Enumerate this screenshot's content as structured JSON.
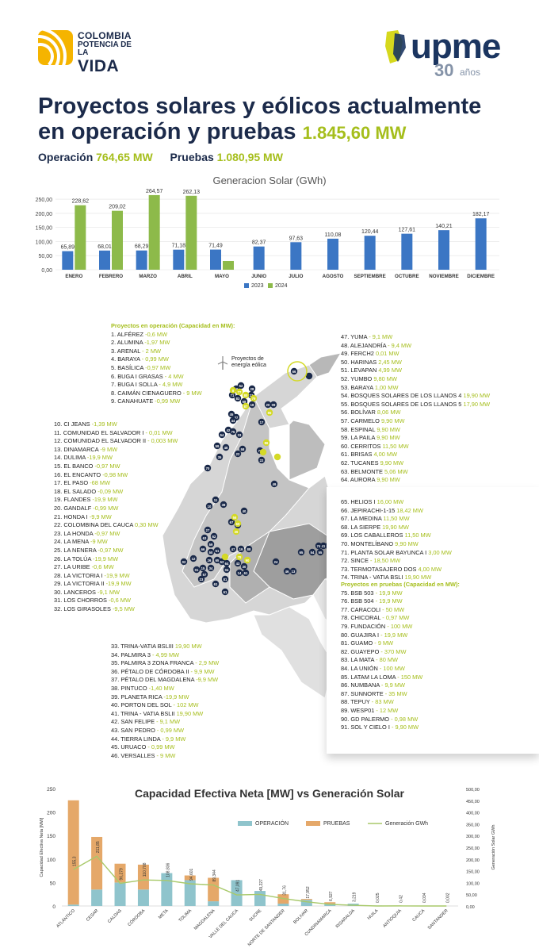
{
  "header": {
    "left_logo": {
      "line1": "COLOMBIA",
      "line2": "POTENCIA DE LA",
      "line3": "VIDA"
    },
    "right_logo": {
      "name": "upme",
      "years": "30",
      "years_word": "años"
    }
  },
  "title": {
    "line1": "Proyectos solares y eólicos actualmente",
    "line2": "en operación y pruebas",
    "total": "1.845,60 MW"
  },
  "summary": {
    "operacion_label": "Operación",
    "operacion_value": "764,65 MW",
    "pruebas_label": "Pruebas",
    "pruebas_value": "1.080,95 MW"
  },
  "colors": {
    "accent_green": "#a5be1b",
    "navy": "#1b2a4a",
    "bar_blue": "#3b76c4",
    "bar_green": "#8dba4a",
    "operacion": "#8fc4cc",
    "pruebas": "#e5a869",
    "line_green": "#a8c96a"
  },
  "chart_data": [
    {
      "type": "bar",
      "title": "Generacion Solar (GWh)",
      "categories": [
        "ENERO",
        "FEBRERO",
        "MARZO",
        "ABRIL",
        "MAYO",
        "JUNIO",
        "JULIO",
        "AGOSTO",
        "SEPTIEMBRE",
        "OCTUBRE",
        "NOVIEMBRE",
        "DICIEMBRE"
      ],
      "y_ticks": [
        "0,00",
        "50,00",
        "100,00",
        "150,00",
        "200,00",
        "250,00"
      ],
      "ylim": [
        0,
        270
      ],
      "series": [
        {
          "name": "2023",
          "values": [
            65.89,
            68.01,
            68.29,
            71.18,
            71.49,
            82.37,
            97.63,
            110.08,
            120.44,
            127.61,
            140.21,
            182.17
          ],
          "labels": [
            "65,89",
            "68,01",
            "68,29",
            "71,18",
            "71,49",
            "82,37",
            "97,63",
            "110,08",
            "120,44",
            "127,61",
            "140,21",
            "182,17"
          ]
        },
        {
          "name": "2024",
          "values": [
            228.62,
            209.02,
            264.57,
            262.13,
            31,
            null,
            null,
            null,
            null,
            null,
            null,
            null
          ],
          "labels": [
            "228,62",
            "209,02",
            "264,57",
            "262,13",
            "",
            "",
            "",
            "",
            "",
            "",
            "",
            ""
          ]
        }
      ],
      "legend": "bottom"
    },
    {
      "type": "bar",
      "title": "Capacidad Efectiva Neta [MW] vs Generación Solar",
      "ylabel": "Capacidad Efectiva Neta [MW]",
      "y2label": "Generación Solar GWh",
      "categories": [
        "ATLÁNTICO",
        "CESAR",
        "CALDAS",
        "CÓRDOBA",
        "META",
        "TOLIMA",
        "MAGDALENA",
        "VALLE DEL CAUCA",
        "SUCRE",
        "NORTE DE SANTANDER",
        "BOLIVAR",
        "CUNDINAMARCA",
        "RISARALDA",
        "HUILA",
        "ANTIOQUIA",
        "CAUCA",
        "SANTANDER"
      ],
      "y_ticks": [
        "0",
        "50",
        "100",
        "150",
        "200",
        "250"
      ],
      "y2_ticks": [
        "0,00",
        "50,00",
        "100,00",
        "150,00",
        "200,00",
        "250,00",
        "300,00",
        "350,00",
        "400,00",
        "450,00",
        "500,00"
      ],
      "ylim": [
        0,
        250
      ],
      "y2lim": [
        0,
        500
      ],
      "series": [
        {
          "name": "OPERACIÓN",
          "values": [
            3,
            35,
            50,
            35,
            70,
            55,
            10,
            55,
            32,
            5,
            13,
            5,
            5,
            1,
            0,
            0,
            0
          ]
        },
        {
          "name": "PRUEBAS",
          "values": [
            222,
            112,
            40,
            53,
            0,
            10,
            50,
            0,
            0,
            20,
            2,
            3,
            0,
            0,
            0,
            0,
            0
          ]
        },
        {
          "name": "Generación GWh",
          "values": [
            155.3,
            211.85,
            96.279,
            110.708,
            108.836,
            94.601,
            89.344,
            47.091,
            49.227,
            31.76,
            17.952,
            6.927,
            3.219,
            0.025,
            0.42,
            0.034,
            0.002
          ],
          "labels": [
            "155,3",
            "211,85",
            "96,279",
            "110,708",
            "108,836",
            "94,601",
            "89,344",
            "47,091",
            "49,227",
            "31,76",
            "17,952",
            "6,927",
            "3,219",
            "0,025",
            "0,42",
            "0,034",
            "0,002"
          ]
        }
      ],
      "legend": "top-right"
    }
  ],
  "map": {
    "wind_label": "Proyectos de energía eólica"
  },
  "lists": {
    "operacion_header": "Proyectos en operación (Capacidad en MW):",
    "pruebas_header": "Proyectos en pruebas (Capacidad en MW):",
    "col1": [
      [
        "1. ALFÉREZ",
        "-0,6 MW"
      ],
      [
        "2. ALUMINA",
        "-1,97 MW"
      ],
      [
        "3. ARENAL",
        "- 2 MW"
      ],
      [
        "4. BARAYA",
        "- 0,99 MW"
      ],
      [
        "5. BASÍLICA",
        "-0,97 MW"
      ],
      [
        "6. BUGA I GRASAS",
        "- 4 MW"
      ],
      [
        "7. BUGA I SOLLA",
        "- 4,9 MW"
      ],
      [
        "8. CAIMÁN CIENAGUERO",
        "- 9 MW"
      ],
      [
        "9. CANAHUATE",
        "-0,99 MW"
      ]
    ],
    "col2": [
      [
        "10. CI JEANS",
        "-1,39 MW"
      ],
      [
        "11. COMUNIDAD EL SALVADOR I",
        "- 0,01 MW"
      ],
      [
        "12. COMUNIDAD EL SALVADOR II",
        "- 0,003 MW"
      ],
      [
        "13. DINAMARCA",
        "-9 MW"
      ],
      [
        "14. DULIMA",
        "-19,9 MW"
      ],
      [
        "15. EL BANCO",
        "-0,97 MW"
      ],
      [
        "16. EL ENCANTO",
        "-0,98 MW"
      ],
      [
        "17. EL PASO",
        "-68 MW"
      ],
      [
        "18. EL SALADO",
        "-0,09 MW"
      ],
      [
        "19. FLANDES",
        "-19,9 MW"
      ],
      [
        "20. GANDALF",
        "-0,99 MW"
      ],
      [
        "21. HONDA I",
        "-9,9 MW"
      ],
      [
        "22. COLOMBINA DEL CAUCA",
        "0,30 MW"
      ],
      [
        "23. LA HONDA",
        "-0,97 MW"
      ],
      [
        "24. LA MENA",
        "-9 MW"
      ],
      [
        "25. LA NENERA",
        "-0,97 MW"
      ],
      [
        "26. LA TOLÚA",
        "-19,9 MW"
      ],
      [
        "27. LA URIBE",
        "-0,6 MW"
      ],
      [
        "28. LA VICTORIA I",
        "-19,9 MW"
      ],
      [
        "29. LA VICTORIA II",
        "-19,9 MW"
      ],
      [
        "30. LANCEROS",
        "-9,1 MW"
      ],
      [
        "31. LOS CHORROS",
        "-0,6 MW"
      ],
      [
        "32. LOS GIRASOLES",
        "-9,5 MW"
      ]
    ],
    "col3": [
      [
        "33. TRINA-VATIA BSLIII",
        "19,90 MW"
      ],
      [
        "34. PALMIRA 3",
        "- 4,99 MW"
      ],
      [
        "35. PALMIRA 3 ZONA FRANCA",
        "- 2,9 MW"
      ],
      [
        "36. PÉTALO DE CÓRDOBA II",
        "- 9,9 MW"
      ],
      [
        "37. PÉTALO DEL MAGDALENA",
        "-9,9 MW"
      ],
      [
        "38. PINTUCO",
        "-1,40 MW"
      ],
      [
        "39. PLANETA RICA",
        "-19,9 MW"
      ],
      [
        "40. PORTON DEL SOL",
        "- 102 MW"
      ],
      [
        "41. TRINA - VATIA BSLII",
        "19,90 MW"
      ],
      [
        "42. SAN FELIPE",
        "- 9,1 MW"
      ],
      [
        "43. SAN PEDRO",
        "- 0,99 MW"
      ],
      [
        "44. TIERRA LINDA",
        "- 9,9 MW"
      ],
      [
        "45. URUACO",
        "- 0,99 MW"
      ],
      [
        "46. VERSALLES",
        "- 9 MW"
      ]
    ],
    "col4": [
      [
        "47. YUMA",
        "- 9,1 MW"
      ],
      [
        "48. ALEJANDRÍA",
        "- 9,4 MW"
      ],
      [
        "49. FERCH2",
        "0,01 MW"
      ],
      [
        "50. HARINAS",
        "2,45 MW"
      ],
      [
        "51. LEVAPAN",
        "4,99 MW"
      ],
      [
        "52. YUMBO",
        "9,80 MW"
      ],
      [
        "53. BARAYA",
        "1,00 MW"
      ],
      [
        "54. BOSQUES SOLARES DE LOS LLANOS 4",
        "19,90 MW"
      ],
      [
        "55. BOSQUES SOLARES DE LOS LLANOS 5",
        "17,90 MW"
      ],
      [
        "56. BOLÍVAR",
        "8,06 MW"
      ],
      [
        "57. CARMELO",
        "9,90 MW"
      ],
      [
        "58. ESPINAL",
        "9,90 MW"
      ],
      [
        "59. LA PAILA",
        "9,90 MW"
      ],
      [
        "60. CERRITOS",
        "11,50 MW"
      ],
      [
        "61. BRISAS",
        "4,00 MW"
      ],
      [
        "62. TUCANES",
        "9,90 MW"
      ],
      [
        "63. BELMONTE",
        "5,06 MW"
      ],
      [
        "64. AURORA",
        "9,90 MW"
      ],
      [
        "65. HELIOS I",
        "16,00 MW"
      ],
      [
        "66. JEPIRACHI-1-15",
        "18,42 MW"
      ],
      [
        "67. LA MEDINA",
        "11,50 MW"
      ],
      [
        "68. LA SIERPE",
        "19,90 MW"
      ],
      [
        "69. LOS CABALLEROS",
        "11,50 MW"
      ],
      [
        "70. MONTELÍBANO",
        "9,90 MW"
      ],
      [
        "71. PLANTA SOLAR BAYUNCA I",
        "3,00 MW"
      ],
      [
        "72. SINCE",
        "- 18,50 MW"
      ],
      [
        "73. TERMOTASAJERO DOS",
        "4,00 MW"
      ],
      [
        "74. TRINA - VATIA BSLI",
        "19,90 MW"
      ]
    ],
    "col5": [
      [
        "75. BSB 503",
        "- 19,9 MW"
      ],
      [
        "76. BSB 504",
        "- 19,9 MW"
      ],
      [
        "77. CARACOLI",
        "- 50 MW"
      ],
      [
        "78. CHICORAL",
        "- 0,97 MW"
      ],
      [
        "79. FUNDACIÓN",
        "- 100 MW"
      ],
      [
        "80. GUAJIRA I",
        "- 19,9 MW"
      ],
      [
        "81. GUAMO",
        "- 9 MW"
      ],
      [
        "82. GUAYEPO",
        "- 370 MW"
      ],
      [
        "83. LA MATA",
        "- 80 MW"
      ],
      [
        "84. LA UNIÓN",
        "- 100 MW"
      ],
      [
        "85. LATAM LA LOMA",
        "- 150 MW"
      ],
      [
        "86. NUMBANA",
        "- 9,9 MW"
      ],
      [
        "87. SUNNORTE",
        "- 35 MW"
      ],
      [
        "88. TEPUY",
        "- 83 MW"
      ],
      [
        "89. WESP01",
        "- 12 MW"
      ],
      [
        "90. GD PALERMO",
        "- 0,98 MW"
      ],
      [
        "91. SOL Y CIELO I",
        "- 9,90 MW"
      ]
    ]
  }
}
